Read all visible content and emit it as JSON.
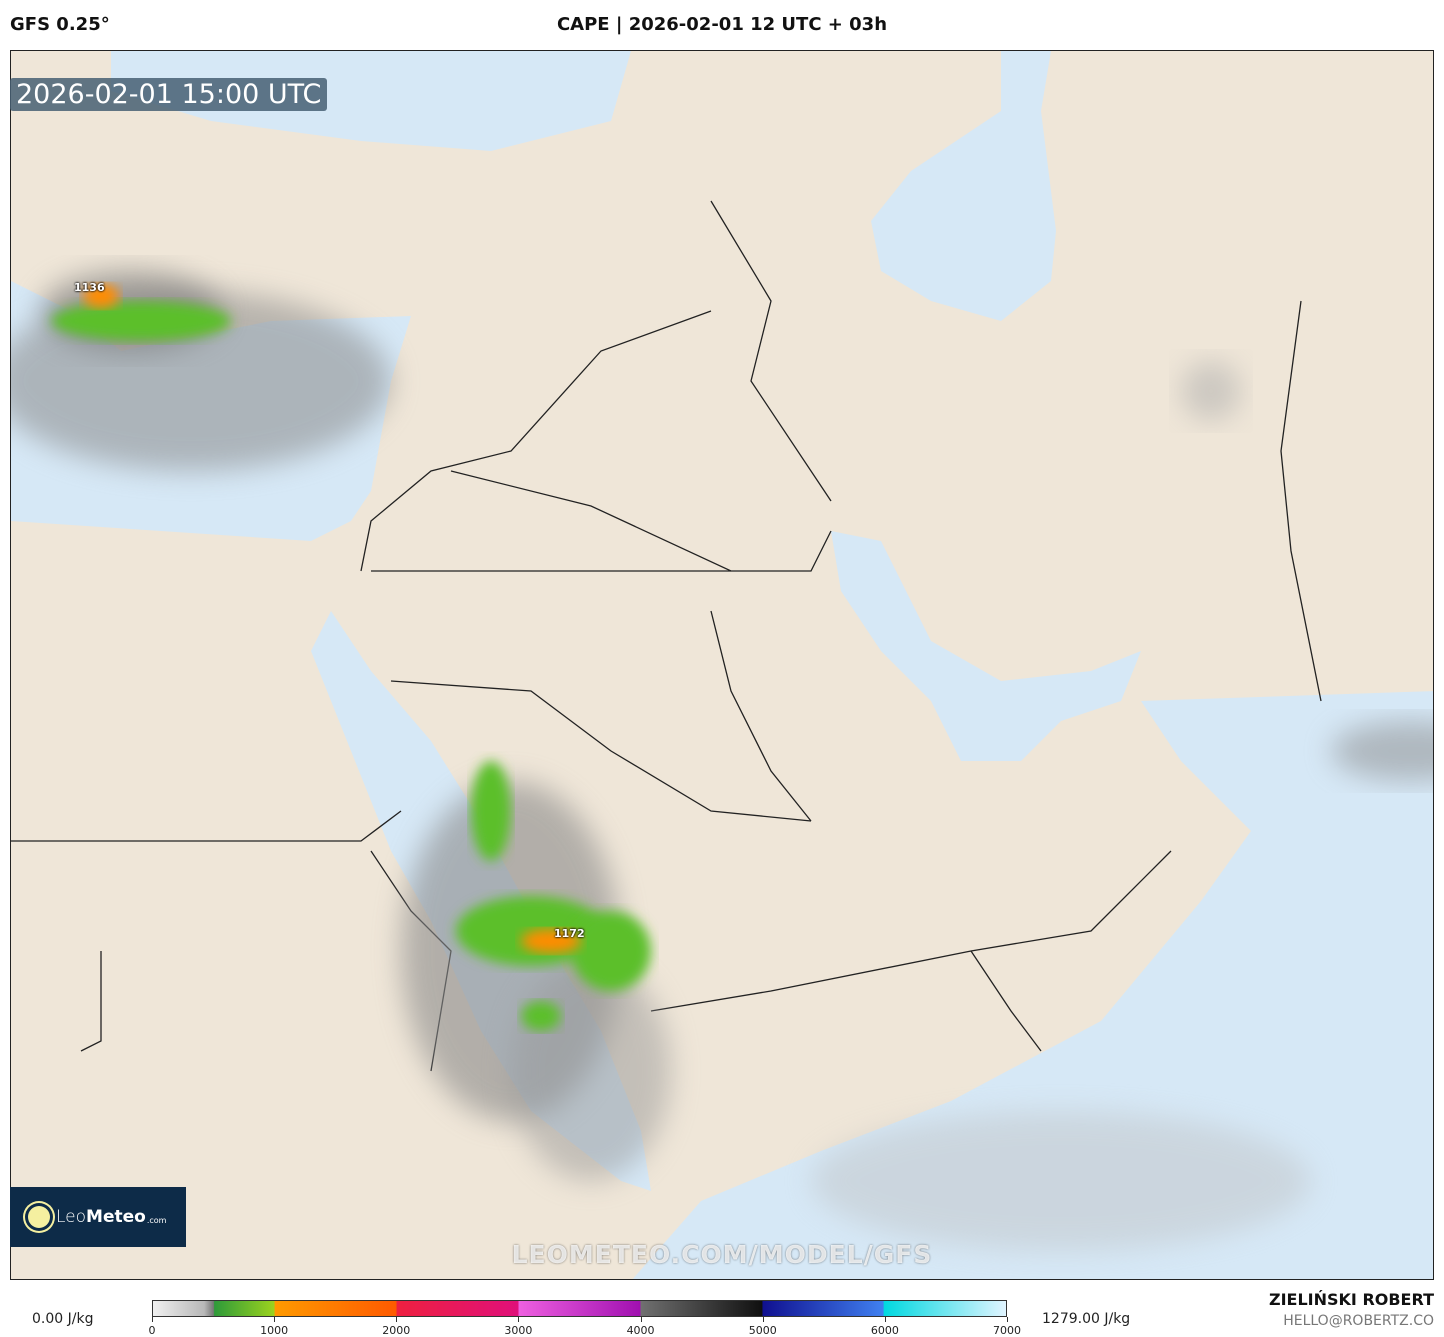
{
  "header": {
    "model": "GFS 0.25°",
    "title": "CAPE | 2026-02-01 12 UTC + 03h"
  },
  "map": {
    "timestamp": "2026-02-01 15:00 UTC",
    "max_labels": [
      "1136",
      "1172"
    ],
    "watermark": "LEOMETEO.COM/MODEL/GFS",
    "colors": {
      "land": "#efe6d8",
      "sea": "#d6e8f6",
      "border": "#222222"
    }
  },
  "logo": {
    "text_light": "Leo",
    "text_bold": "Meteo",
    "text_small": ".com"
  },
  "legend": {
    "min_label": "0.00 J/kg",
    "max_label": "1279.00 J/kg",
    "ticks": [
      "0",
      "1000",
      "2000",
      "3000",
      "4000",
      "5000",
      "6000",
      "7000"
    ],
    "unit": "J/kg"
  },
  "credits": {
    "author": "ZIELIŃSKI ROBERT",
    "email": "HELLO@ROBERTZ.CO"
  }
}
